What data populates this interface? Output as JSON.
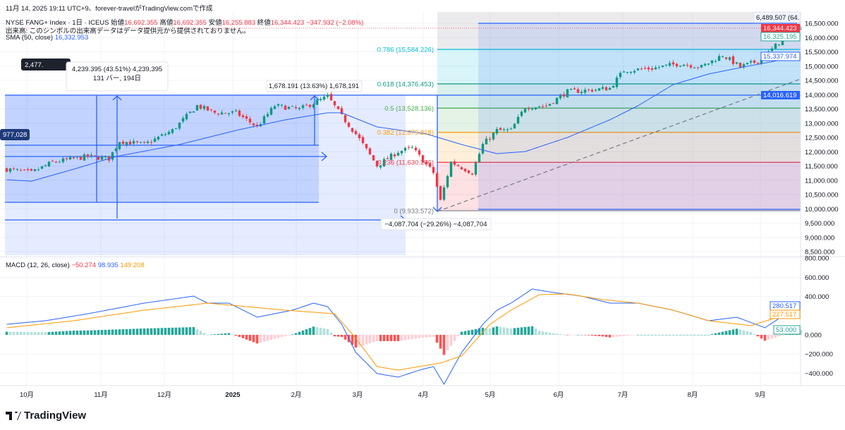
{
  "header": {
    "created": "11月 14, 2025 19:11 UTC+9、forever-travelがTradingView.comで作成",
    "symbol": "NYSE FANG+ Index · 1日 · ICEUS",
    "open_label": "始値",
    "open": "16,692.355",
    "high_label": "高値",
    "high": "16,692.355",
    "low_label": "安値",
    "low": "16,255.883",
    "close_label": "終値",
    "close": "16,344.423",
    "change": "−347.932 (−2.08%)",
    "volume_note": "出来高: このシンボルの出来高データはデータ提供元から提供されておりません。",
    "sma_label": "SMA (50, close)",
    "sma_value": "16,332.953"
  },
  "macd_legend": {
    "label": "MACD (12, 26, close)",
    "hist": "−50.274",
    "macd": "98.935",
    "signal": "149.208"
  },
  "price_axis": [
    "16,500.000",
    "16,000.000",
    "15,500.000",
    "15,000.000",
    "14,500.000",
    "14,000.000",
    "13,500.000",
    "13,000.000",
    "12,500.000",
    "12,000.000",
    "11,500.000",
    "11,000.000",
    "10,500.000",
    "10,000.000",
    "9,500.000",
    "9,000.000",
    "8,500.000"
  ],
  "macd_axis": [
    "800.000",
    "600.000",
    "400.000",
    "0.000",
    "−200.000",
    "−400.000"
  ],
  "time_axis": [
    "10月",
    "11月",
    "12月",
    "2025",
    "2月",
    "3月",
    "4月",
    "5月",
    "6月",
    "7月",
    "8月",
    "9月"
  ],
  "badges": {
    "last": "16,344.423",
    "sma": "16,325.195",
    "sma2": "15,337.974",
    "line": "14,016.619",
    "macd": "280.517",
    "signal": "227.517",
    "hist": "53.000"
  },
  "fib": [
    {
      "label": "0.786 (15,584.226)",
      "price": 15584.226,
      "color": "#00bcd4"
    },
    {
      "label": "0.618 (14,376.453)",
      "price": 14376.453,
      "color": "#089981"
    },
    {
      "label": "0.5 (13,528.136)",
      "price": 13528.136,
      "color": "#4caf50"
    },
    {
      "label": "0.382 (12,679.818)",
      "price": 12679.818,
      "color": "#ff9800"
    },
    {
      "label": "0.236 (11,630.206)",
      "price": 11630.206,
      "color": "#f23645"
    },
    {
      "label": "0 (9,933.572)",
      "price": 9933.572,
      "color": "#787b86"
    }
  ],
  "measures": {
    "m1_dark": "2,477.",
    "m1_line1": "4,239.395 (43.51%) 4,239,395",
    "m1_line2": "131 バー, 194日",
    "left_cut": "977,028",
    "m2": "1,678.191 (13.63%) 1,678,191",
    "m3": "−4,087.704 (−29.26%) −4,087,704",
    "m4": "6,489.507 (64."
  },
  "chart_data": {
    "type": "candlestick",
    "price_anchors": [
      [
        0,
        11389
      ],
      [
        7,
        11265
      ],
      [
        13,
        11636
      ],
      [
        23,
        11833
      ],
      [
        29,
        11759
      ],
      [
        32,
        12376
      ],
      [
        39,
        12250
      ],
      [
        47,
        12747
      ],
      [
        54,
        13611
      ],
      [
        59,
        13364
      ],
      [
        65,
        13364
      ],
      [
        71,
        12870
      ],
      [
        76,
        13611
      ],
      [
        83,
        13487
      ],
      [
        91,
        13932
      ],
      [
        95,
        13241
      ],
      [
        99,
        12623
      ],
      [
        105,
        11512
      ],
      [
        111,
        12006
      ],
      [
        115,
        12130
      ],
      [
        121,
        11265
      ],
      [
        123,
        10278
      ],
      [
        126,
        11636
      ],
      [
        132,
        11265
      ],
      [
        135,
        12253
      ],
      [
        139,
        12747
      ],
      [
        143,
        12747
      ],
      [
        147,
        13562
      ],
      [
        153,
        13611
      ],
      [
        159,
        14105
      ],
      [
        165,
        14154
      ],
      [
        171,
        14228
      ],
      [
        175,
        14846
      ],
      [
        183,
        14920
      ],
      [
        191,
        15093
      ],
      [
        197,
        14970
      ],
      [
        203,
        15389
      ],
      [
        208,
        14970
      ],
      [
        214,
        15216
      ],
      [
        219,
        15833
      ],
      [
        225,
        16344
      ]
    ],
    "sma_anchors": [
      [
        0,
        11019
      ],
      [
        7,
        10969
      ],
      [
        19,
        11389
      ],
      [
        31,
        11833
      ],
      [
        49,
        12253
      ],
      [
        65,
        12747
      ],
      [
        79,
        13117
      ],
      [
        91,
        13364
      ],
      [
        95,
        13364
      ],
      [
        105,
        12870
      ],
      [
        119,
        12624
      ],
      [
        129,
        12253
      ],
      [
        139,
        11932
      ],
      [
        147,
        12006
      ],
      [
        159,
        12500
      ],
      [
        171,
        13117
      ],
      [
        179,
        13611
      ],
      [
        189,
        14352
      ],
      [
        199,
        14722
      ],
      [
        209,
        14969
      ],
      [
        225,
        15340
      ]
    ],
    "macd_anchors": [
      [
        0,
        110
      ],
      [
        11,
        147
      ],
      [
        23,
        220
      ],
      [
        39,
        331
      ],
      [
        53,
        404
      ],
      [
        57,
        331
      ],
      [
        63,
        331
      ],
      [
        71,
        184
      ],
      [
        81,
        257
      ],
      [
        87,
        331
      ],
      [
        91,
        294
      ],
      [
        95,
        110
      ],
      [
        99,
        -184
      ],
      [
        105,
        -404
      ],
      [
        111,
        -441
      ],
      [
        117,
        -368
      ],
      [
        121,
        -331
      ],
      [
        124,
        -515
      ],
      [
        129,
        -184
      ],
      [
        135,
        110
      ],
      [
        139,
        257
      ],
      [
        143,
        331
      ],
      [
        149,
        478
      ],
      [
        155,
        441
      ],
      [
        163,
        404
      ],
      [
        171,
        331
      ],
      [
        179,
        331
      ],
      [
        189,
        257
      ],
      [
        199,
        147
      ],
      [
        207,
        184
      ],
      [
        215,
        74
      ],
      [
        225,
        316
      ]
    ],
    "signal_anchors": [
      [
        0,
        74
      ],
      [
        19,
        147
      ],
      [
        39,
        257
      ],
      [
        57,
        331
      ],
      [
        79,
        257
      ],
      [
        93,
        220
      ],
      [
        99,
        -37
      ],
      [
        105,
        -331
      ],
      [
        111,
        -368
      ],
      [
        123,
        -294
      ],
      [
        129,
        -220
      ],
      [
        137,
        110
      ],
      [
        143,
        257
      ],
      [
        151,
        419
      ],
      [
        159,
        426
      ],
      [
        169,
        368
      ],
      [
        179,
        331
      ],
      [
        189,
        257
      ],
      [
        199,
        147
      ],
      [
        211,
        96
      ],
      [
        225,
        257
      ]
    ],
    "price_range": [
      8500,
      16500
    ],
    "macd_range": [
      -400,
      800
    ]
  },
  "colors": {
    "up": "#089981",
    "down": "#f23645",
    "sma": "#2962ff",
    "signal": "#ff9800"
  },
  "footer": {
    "brand": "TradingView"
  }
}
